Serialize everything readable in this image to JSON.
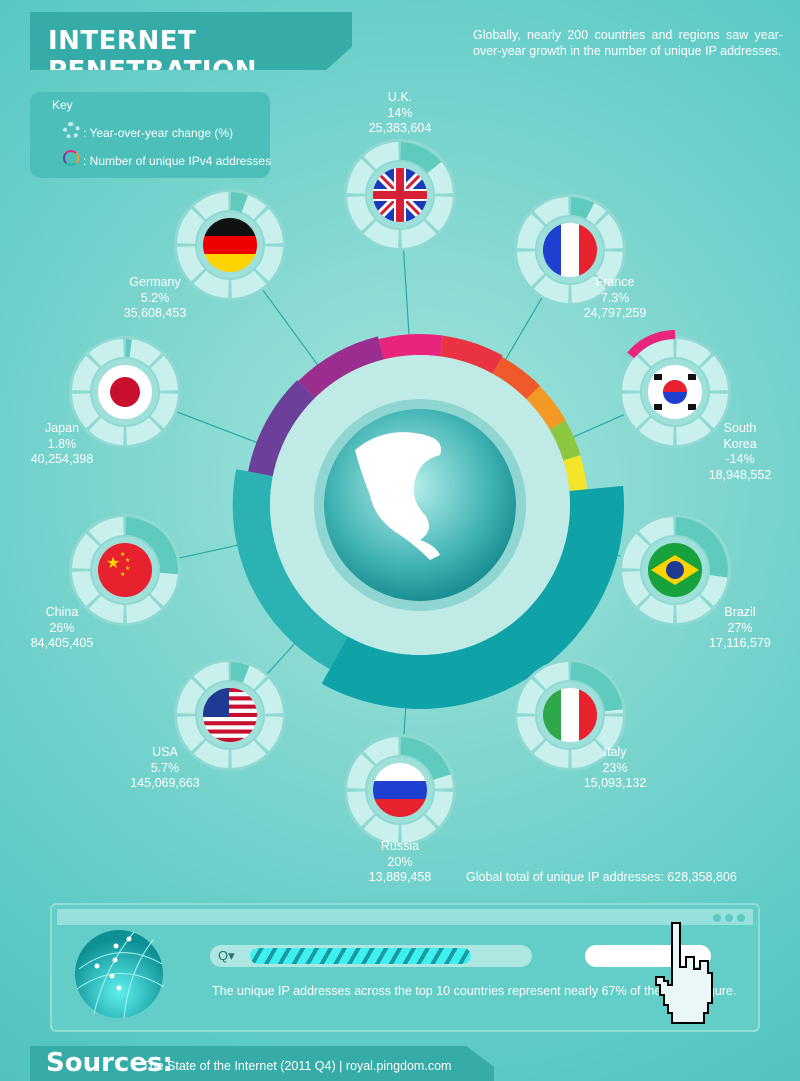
{
  "header": {
    "title": "INTERNET PENETRATION",
    "intro": "Globally, nearly 200 countries and regions saw year-over-year growth in the number of unique IP addresses."
  },
  "key": {
    "title": "Key",
    "yoy_label": ": Year-over-year change (%)",
    "ipv4_label": ": Number of unique IPv4 addresses"
  },
  "chart_data": {
    "type": "radial-infographic",
    "series_labels": [
      "Year-over-year change (%)",
      "Number of unique IPv4 addresses"
    ],
    "countries": [
      {
        "name": "U.K.",
        "flag": "uk",
        "change_label": "14%",
        "change": 14,
        "addresses_label": "25,383,604",
        "addresses": 25383604,
        "color": "#e8247c"
      },
      {
        "name": "France",
        "flag": "france",
        "change_label": "7.3%",
        "change": 7.3,
        "addresses_label": "24,797,259",
        "addresses": 24797259,
        "color": "#ea3340"
      },
      {
        "name": "South Korea",
        "flag": "korea",
        "change_label": "-14%",
        "change": -14,
        "addresses_label": "18,948,552",
        "addresses": 18948552,
        "color": "#f05a2a"
      },
      {
        "name": "Brazil",
        "flag": "brazil",
        "change_label": "27%",
        "change": 27,
        "addresses_label": "17,116,579",
        "addresses": 17116579,
        "color": "#f39a26"
      },
      {
        "name": "Italy",
        "flag": "italy",
        "change_label": "23%",
        "change": 23,
        "addresses_label": "15,093,132",
        "addresses": 15093132,
        "color": "#8dc63f"
      },
      {
        "name": "Russia",
        "flag": "russia",
        "change_label": "20%",
        "change": 20,
        "addresses_label": "13,889,458",
        "addresses": 13889458,
        "color": "#f2e52a"
      },
      {
        "name": "USA",
        "flag": "usa",
        "change_label": "5.7%",
        "change": 5.7,
        "addresses_label": "145,069,663",
        "addresses": 145069663,
        "color": "#0fa3a8"
      },
      {
        "name": "China",
        "flag": "china",
        "change_label": "26%",
        "change": 26,
        "addresses_label": "84,405,405",
        "addresses": 84405405,
        "color": "#2ab3b2"
      },
      {
        "name": "Japan",
        "flag": "japan",
        "change_label": "1.8%",
        "change": 1.8,
        "addresses_label": "40,254,398",
        "addresses": 40254398,
        "color": "#6b3f9a"
      },
      {
        "name": "Germany",
        "flag": "germany",
        "change_label": "5.2%",
        "change": 5.2,
        "addresses_label": "35,608,453",
        "addresses": 35608453,
        "color": "#9b2d8f"
      }
    ],
    "global_total": 628358806
  },
  "footer": {
    "global_total_text": "Global total of unique IP addresses: 628,358,806",
    "share_percent": 67,
    "note": "The unique IP addresses across the top 10 countries represent nearly 67% of the global figure.",
    "search_icon": "Q▾",
    "sources_label": "Sources:",
    "sources_text": "The State of the Internet (2011 Q4) | royal.pingdom.com"
  }
}
